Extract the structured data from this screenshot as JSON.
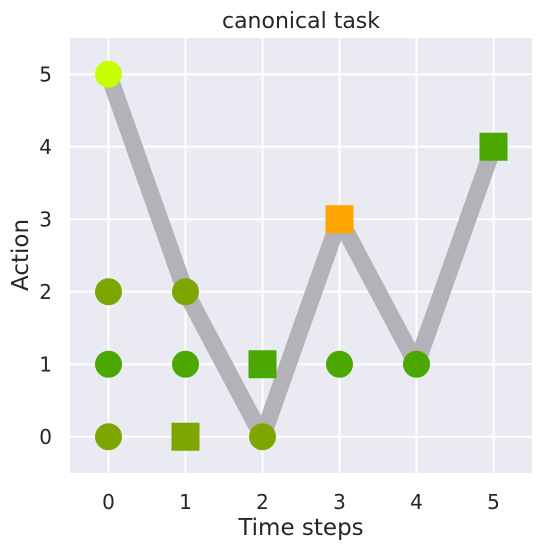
{
  "chart_data": {
    "type": "scatter",
    "title": "canonical task",
    "xlabel": "Time steps",
    "ylabel": "Action",
    "xlim": [
      -0.5,
      5.5
    ],
    "ylim": [
      -0.5,
      5.5
    ],
    "xticks": [
      "0",
      "1",
      "2",
      "3",
      "4",
      "5"
    ],
    "yticks": [
      "0",
      "1",
      "2",
      "3",
      "4",
      "5"
    ],
    "grid": true,
    "path": {
      "color": "#b3b2b8",
      "points": [
        [
          0,
          5
        ],
        [
          1,
          2
        ],
        [
          2,
          0
        ],
        [
          3,
          3
        ],
        [
          4,
          1
        ],
        [
          5,
          4
        ]
      ]
    },
    "markers": [
      {
        "x": 0,
        "y": 5,
        "shape": "circle",
        "color": "#c6ff00"
      },
      {
        "x": 0,
        "y": 2,
        "shape": "circle",
        "color": "#7ea600"
      },
      {
        "x": 0,
        "y": 1,
        "shape": "circle",
        "color": "#4aa800"
      },
      {
        "x": 0,
        "y": 0,
        "shape": "circle",
        "color": "#7ea600"
      },
      {
        "x": 1,
        "y": 2,
        "shape": "circle",
        "color": "#7ea600"
      },
      {
        "x": 1,
        "y": 1,
        "shape": "circle",
        "color": "#4aa800"
      },
      {
        "x": 1,
        "y": 0,
        "shape": "square",
        "color": "#7ea600"
      },
      {
        "x": 2,
        "y": 1,
        "shape": "square",
        "color": "#4aa800"
      },
      {
        "x": 2,
        "y": 0,
        "shape": "circle",
        "color": "#7ea600"
      },
      {
        "x": 3,
        "y": 3,
        "shape": "square",
        "color": "#ffa500"
      },
      {
        "x": 3,
        "y": 1,
        "shape": "circle",
        "color": "#4aa800"
      },
      {
        "x": 4,
        "y": 1,
        "shape": "circle",
        "color": "#4aa800"
      },
      {
        "x": 5,
        "y": 4,
        "shape": "square",
        "color": "#4aa800"
      }
    ],
    "colors": {
      "plot_background": "#eaeaf2",
      "grid": "#ffffff"
    }
  }
}
